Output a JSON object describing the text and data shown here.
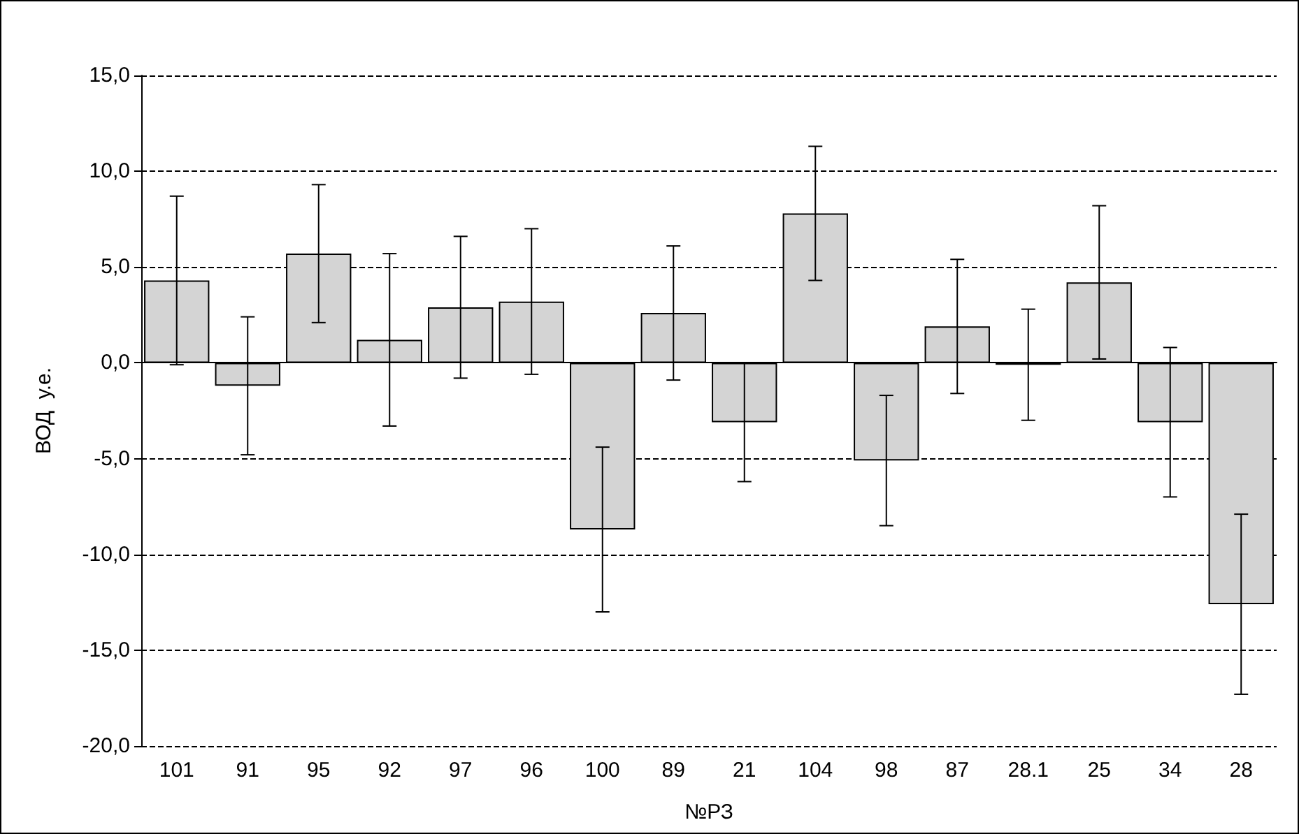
{
  "chart_data": {
    "type": "bar",
    "xlabel": "№РЗ",
    "ylabel": "ВОД  у.е.",
    "categories": [
      "101",
      "91",
      "95",
      "92",
      "97",
      "96",
      "100",
      "89",
      "21",
      "104",
      "98",
      "87",
      "28.1",
      "25",
      "34",
      "28"
    ],
    "values": [
      4.3,
      -1.2,
      5.7,
      1.2,
      2.9,
      3.2,
      -8.7,
      2.6,
      -3.1,
      7.8,
      -5.1,
      1.9,
      -0.1,
      4.2,
      -3.1,
      -12.6
    ],
    "errors": [
      4.4,
      3.6,
      3.6,
      4.5,
      3.7,
      3.8,
      4.3,
      3.5,
      3.1,
      3.5,
      3.4,
      3.5,
      2.9,
      4.0,
      3.9,
      4.7
    ],
    "color": "#d4d4d4",
    "ylim": [
      -20,
      15
    ],
    "yticks": [
      {
        "value": -20,
        "label": "-20,0"
      },
      {
        "value": -15,
        "label": "-15,0"
      },
      {
        "value": -10,
        "label": "-10,0"
      },
      {
        "value": -5,
        "label": "-5,0"
      },
      {
        "value": 0,
        "label": "0,0"
      },
      {
        "value": 5,
        "label": "5,0"
      },
      {
        "value": 10,
        "label": "10,0"
      },
      {
        "value": 15,
        "label": "15,0"
      }
    ],
    "grid": "y"
  }
}
